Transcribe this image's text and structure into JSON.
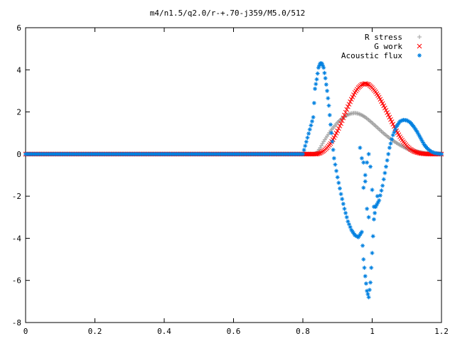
{
  "chart_data": {
    "type": "scatter",
    "title": "m4/n1.5/q2.0/r-+.70-j359/M5.0/512",
    "xlabel": "",
    "ylabel": "",
    "xlim": [
      0,
      1.2
    ],
    "ylim": [
      -8,
      6
    ],
    "x_ticks": [
      "0",
      "0.2",
      "0.4",
      "0.6",
      "0.8",
      "1",
      "1.2"
    ],
    "y_ticks": [
      "6",
      "4",
      "2",
      "0",
      "-2",
      "-4",
      "-6",
      "-8"
    ],
    "grid": false,
    "legend_position": "top-right",
    "series": [
      {
        "name": "R stress",
        "marker": "+",
        "color": "#a0a0a0",
        "x": [
          0,
          0.2,
          0.4,
          0.6,
          0.8,
          0.83,
          0.84,
          0.85,
          0.86,
          0.87,
          0.88,
          0.89,
          0.9,
          0.91,
          0.92,
          0.93,
          0.94,
          0.95,
          0.96,
          0.97,
          0.98,
          0.99,
          1.0,
          1.01,
          1.02,
          1.03,
          1.04,
          1.05,
          1.06,
          1.07,
          1.08,
          1.09,
          1.1,
          1.11,
          1.12,
          1.13,
          1.14,
          1.15,
          1.16,
          1.17,
          1.18,
          1.19,
          1.2
        ],
        "y": [
          0,
          0,
          0,
          0,
          0,
          0,
          0.05,
          0.3,
          0.6,
          0.85,
          1.1,
          1.3,
          1.5,
          1.65,
          1.78,
          1.87,
          1.93,
          1.95,
          1.92,
          1.85,
          1.75,
          1.62,
          1.48,
          1.33,
          1.18,
          1.03,
          0.89,
          0.76,
          0.64,
          0.53,
          0.43,
          0.34,
          0.26,
          0.2,
          0.15,
          0.11,
          0.08,
          0.05,
          0.03,
          0.02,
          0.01,
          0.01,
          0.0
        ]
      },
      {
        "name": "G work",
        "marker": "x",
        "color": "#ff0000",
        "x": [
          0,
          0.2,
          0.4,
          0.6,
          0.8,
          0.84,
          0.85,
          0.86,
          0.87,
          0.88,
          0.89,
          0.9,
          0.91,
          0.92,
          0.93,
          0.94,
          0.95,
          0.96,
          0.97,
          0.98,
          0.99,
          1.0,
          1.01,
          1.02,
          1.03,
          1.04,
          1.05,
          1.06,
          1.07,
          1.08,
          1.09,
          1.1,
          1.11,
          1.12,
          1.13,
          1.14,
          1.15,
          1.16,
          1.17,
          1.18,
          1.19,
          1.2
        ],
        "y": [
          0,
          0,
          0,
          0,
          0,
          0.0,
          0.05,
          0.15,
          0.3,
          0.5,
          0.78,
          1.1,
          1.45,
          1.85,
          2.25,
          2.6,
          2.92,
          3.15,
          3.3,
          3.35,
          3.3,
          3.15,
          2.95,
          2.7,
          2.4,
          2.08,
          1.75,
          1.42,
          1.1,
          0.82,
          0.58,
          0.38,
          0.23,
          0.13,
          0.07,
          0.03,
          0.01,
          0.0,
          0.0,
          0.0,
          0.0,
          0.0
        ]
      },
      {
        "name": "Acoustic flux",
        "marker": "*",
        "color": "#0080e0",
        "x": [
          0,
          0.2,
          0.4,
          0.6,
          0.8,
          0.83,
          0.835,
          0.84,
          0.845,
          0.85,
          0.855,
          0.86,
          0.865,
          0.87,
          0.875,
          0.88,
          0.885,
          0.89,
          0.9,
          0.91,
          0.92,
          0.93,
          0.94,
          0.95,
          0.96,
          0.97,
          0.975,
          0.98,
          0.985,
          0.99,
          0.995,
          1.0,
          1.005,
          1.01,
          1.02,
          1.03,
          1.04,
          1.05,
          1.06,
          1.07,
          1.08,
          1.09,
          1.1,
          1.11,
          1.12,
          1.13,
          1.14,
          1.15,
          1.16,
          1.17,
          1.18,
          1.19,
          1.2
        ],
        "y": [
          0,
          0,
          0,
          0,
          0,
          1.75,
          3.1,
          3.55,
          4.1,
          4.3,
          4.3,
          4.1,
          3.6,
          3.0,
          2.3,
          1.4,
          0.6,
          -0.2,
          -1.1,
          -1.9,
          -2.6,
          -3.2,
          -3.6,
          -3.85,
          -3.95,
          -3.7,
          -5.0,
          -5.8,
          -6.5,
          -6.8,
          -6.1,
          -4.7,
          -3.1,
          -2.5,
          -2.2,
          -1.5,
          -0.6,
          0.3,
          0.9,
          1.3,
          1.55,
          1.62,
          1.6,
          1.5,
          1.3,
          1.05,
          0.75,
          0.45,
          0.25,
          0.12,
          0.05,
          0.02,
          0.0
        ]
      }
    ],
    "scatter_extra": {
      "Acoustic flux": {
        "x": [
          0.965,
          0.97,
          0.975,
          0.98,
          0.985,
          0.99,
          0.995,
          1.0,
          1.005,
          1.01,
          1.015,
          0.975,
          0.98,
          0.985,
          0.99
        ],
        "y": [
          0.3,
          -0.2,
          -0.4,
          -1.3,
          -2.6,
          -3.0,
          -0.6,
          -1.7,
          -2.5,
          -2.5,
          -2.0,
          -1.6,
          -1.0,
          -0.4,
          0.0
        ]
      }
    }
  }
}
